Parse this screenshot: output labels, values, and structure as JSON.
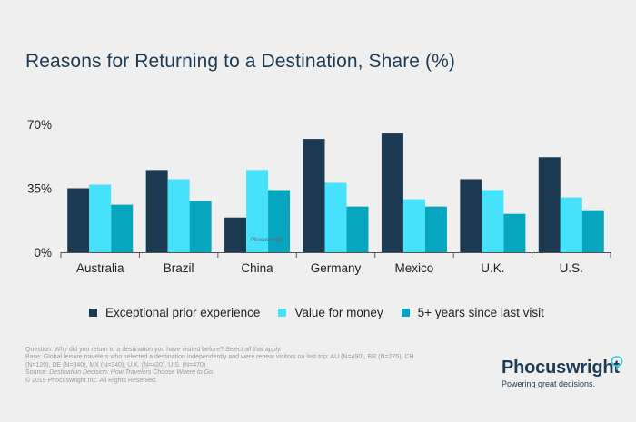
{
  "title": "Reasons for Returning to a Destination, Share (%)",
  "colors": {
    "background": "#efefef",
    "series": [
      "#1b3a52",
      "#46e2fb",
      "#06a6bf"
    ],
    "text": "#1d3b55"
  },
  "chart_data": {
    "type": "bar",
    "title": "Reasons for Returning to a Destination, Share (%)",
    "categories": [
      "Australia",
      "Brazil",
      "China",
      "Germany",
      "Mexico",
      "U.K.",
      "U.S."
    ],
    "series": [
      {
        "name": "Exceptional prior experience",
        "values": [
          35,
          45,
          19,
          62,
          65,
          40,
          52
        ]
      },
      {
        "name": "Value for money",
        "values": [
          37,
          40,
          45,
          38,
          29,
          34,
          30
        ]
      },
      {
        "name": "5+ years since last visit",
        "values": [
          26,
          28,
          34,
          25,
          25,
          21,
          23
        ]
      }
    ],
    "y_ticks": [
      "0%",
      "35%",
      "70%"
    ],
    "y_tick_values": [
      0,
      35,
      70
    ],
    "ylim": [
      0,
      70
    ],
    "grid": false,
    "legend_position": "bottom"
  },
  "watermark": "Phocuswright",
  "footer": {
    "question_prefix": "Question: Why did you return to a destination you have visited before? ",
    "question_note": "Select all that apply.",
    "base": "Base: Global leisure travelers who selected a destination independently and were repeat visitors on last trip: AU (N=490), BR (N=275), CH (N=120), DE (N=340), MX (N=340), U.K. (N=420), U.S. (N=470)",
    "source_prefix": "Source: ",
    "source_title": "Destination Decision: How Travelers Choose Where to Go",
    "copyright": "© 2019  Phocuswright Inc. All Rights Reserved."
  },
  "logo": {
    "name": "Phocuswright",
    "tagline": "Powering great decisions."
  }
}
